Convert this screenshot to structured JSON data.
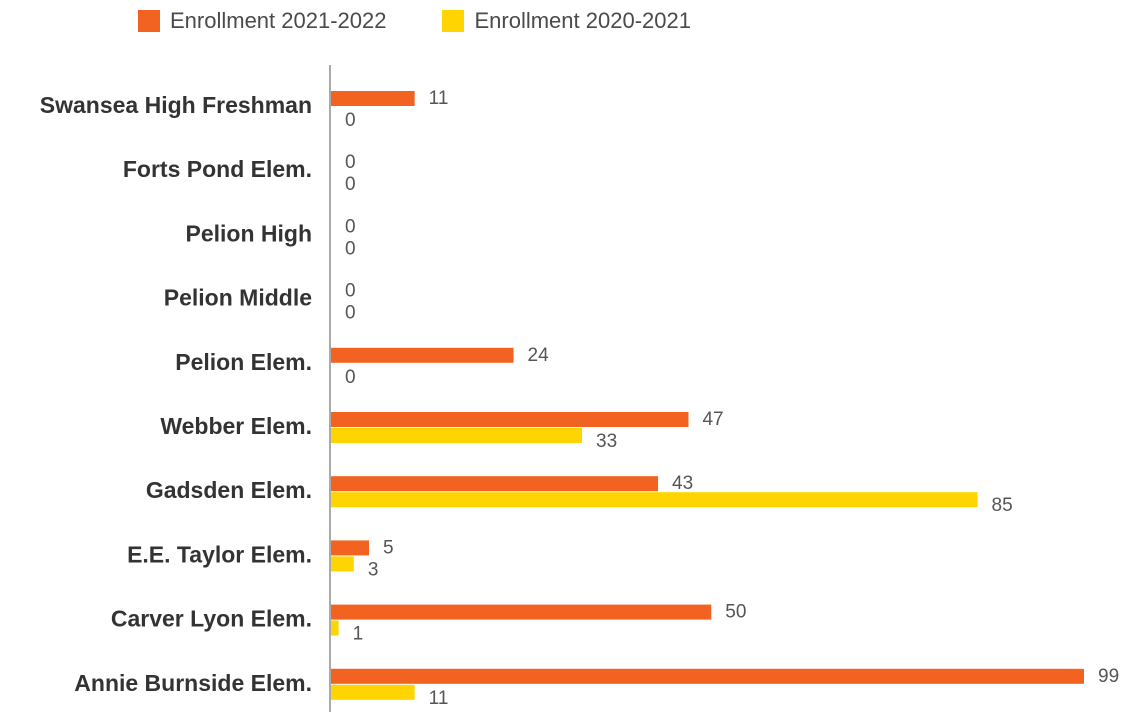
{
  "chart_data": {
    "type": "bar",
    "orientation": "horizontal",
    "title": "",
    "xlabel": "",
    "ylabel": "",
    "legend_position": "top",
    "grid": false,
    "xlim": [
      0,
      100
    ],
    "categories": [
      "Swansea High Freshman",
      "Forts Pond Elem.",
      "Pelion High",
      "Pelion Middle",
      "Pelion Elem.",
      "Webber Elem.",
      "Gadsden Elem.",
      "E.E. Taylor Elem.",
      "Carver Lyon Elem.",
      "Annie Burnside Elem."
    ],
    "series": [
      {
        "name": "Enrollment 2021-2022",
        "color": "#F26322",
        "values": [
          11,
          0,
          0,
          0,
          24,
          47,
          43,
          5,
          50,
          99
        ]
      },
      {
        "name": "Enrollment 2020-2021",
        "color": "#FFD400",
        "values": [
          0,
          0,
          0,
          0,
          0,
          33,
          85,
          3,
          1,
          11
        ]
      }
    ]
  }
}
